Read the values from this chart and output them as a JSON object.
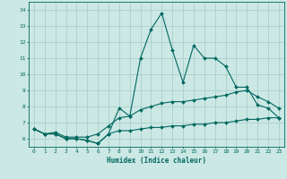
{
  "xlabel": "Humidex (Indice chaleur)",
  "ylabel": "",
  "background_color": "#cce8e4",
  "grid_color": "#aacfcc",
  "line_color": "#006860",
  "xlim": [
    -0.5,
    23.5
  ],
  "ylim": [
    5.5,
    14.5
  ],
  "xticks": [
    0,
    1,
    2,
    3,
    4,
    5,
    6,
    7,
    8,
    9,
    10,
    11,
    12,
    13,
    14,
    15,
    16,
    17,
    18,
    19,
    20,
    21,
    22,
    23
  ],
  "yticks": [
    6,
    7,
    8,
    9,
    10,
    11,
    12,
    13,
    14
  ],
  "x": [
    0,
    1,
    2,
    3,
    4,
    5,
    6,
    7,
    8,
    9,
    10,
    11,
    12,
    13,
    14,
    15,
    16,
    17,
    18,
    19,
    20,
    21,
    22,
    23
  ],
  "y_max": [
    6.6,
    6.3,
    6.3,
    6.0,
    6.0,
    5.9,
    5.7,
    6.3,
    7.9,
    7.4,
    11.0,
    12.8,
    13.8,
    11.5,
    9.5,
    11.8,
    11.0,
    11.0,
    10.5,
    9.2,
    9.2,
    8.1,
    7.9,
    7.3
  ],
  "y_mean": [
    6.6,
    6.3,
    6.4,
    6.1,
    6.1,
    6.1,
    6.3,
    6.8,
    7.3,
    7.4,
    7.8,
    8.0,
    8.2,
    8.3,
    8.3,
    8.4,
    8.5,
    8.6,
    8.7,
    8.9,
    9.0,
    8.6,
    8.3,
    7.9
  ],
  "y_min": [
    6.6,
    6.3,
    6.3,
    6.0,
    6.0,
    5.9,
    5.7,
    6.3,
    6.5,
    6.5,
    6.6,
    6.7,
    6.7,
    6.8,
    6.8,
    6.9,
    6.9,
    7.0,
    7.0,
    7.1,
    7.2,
    7.2,
    7.3,
    7.3
  ]
}
